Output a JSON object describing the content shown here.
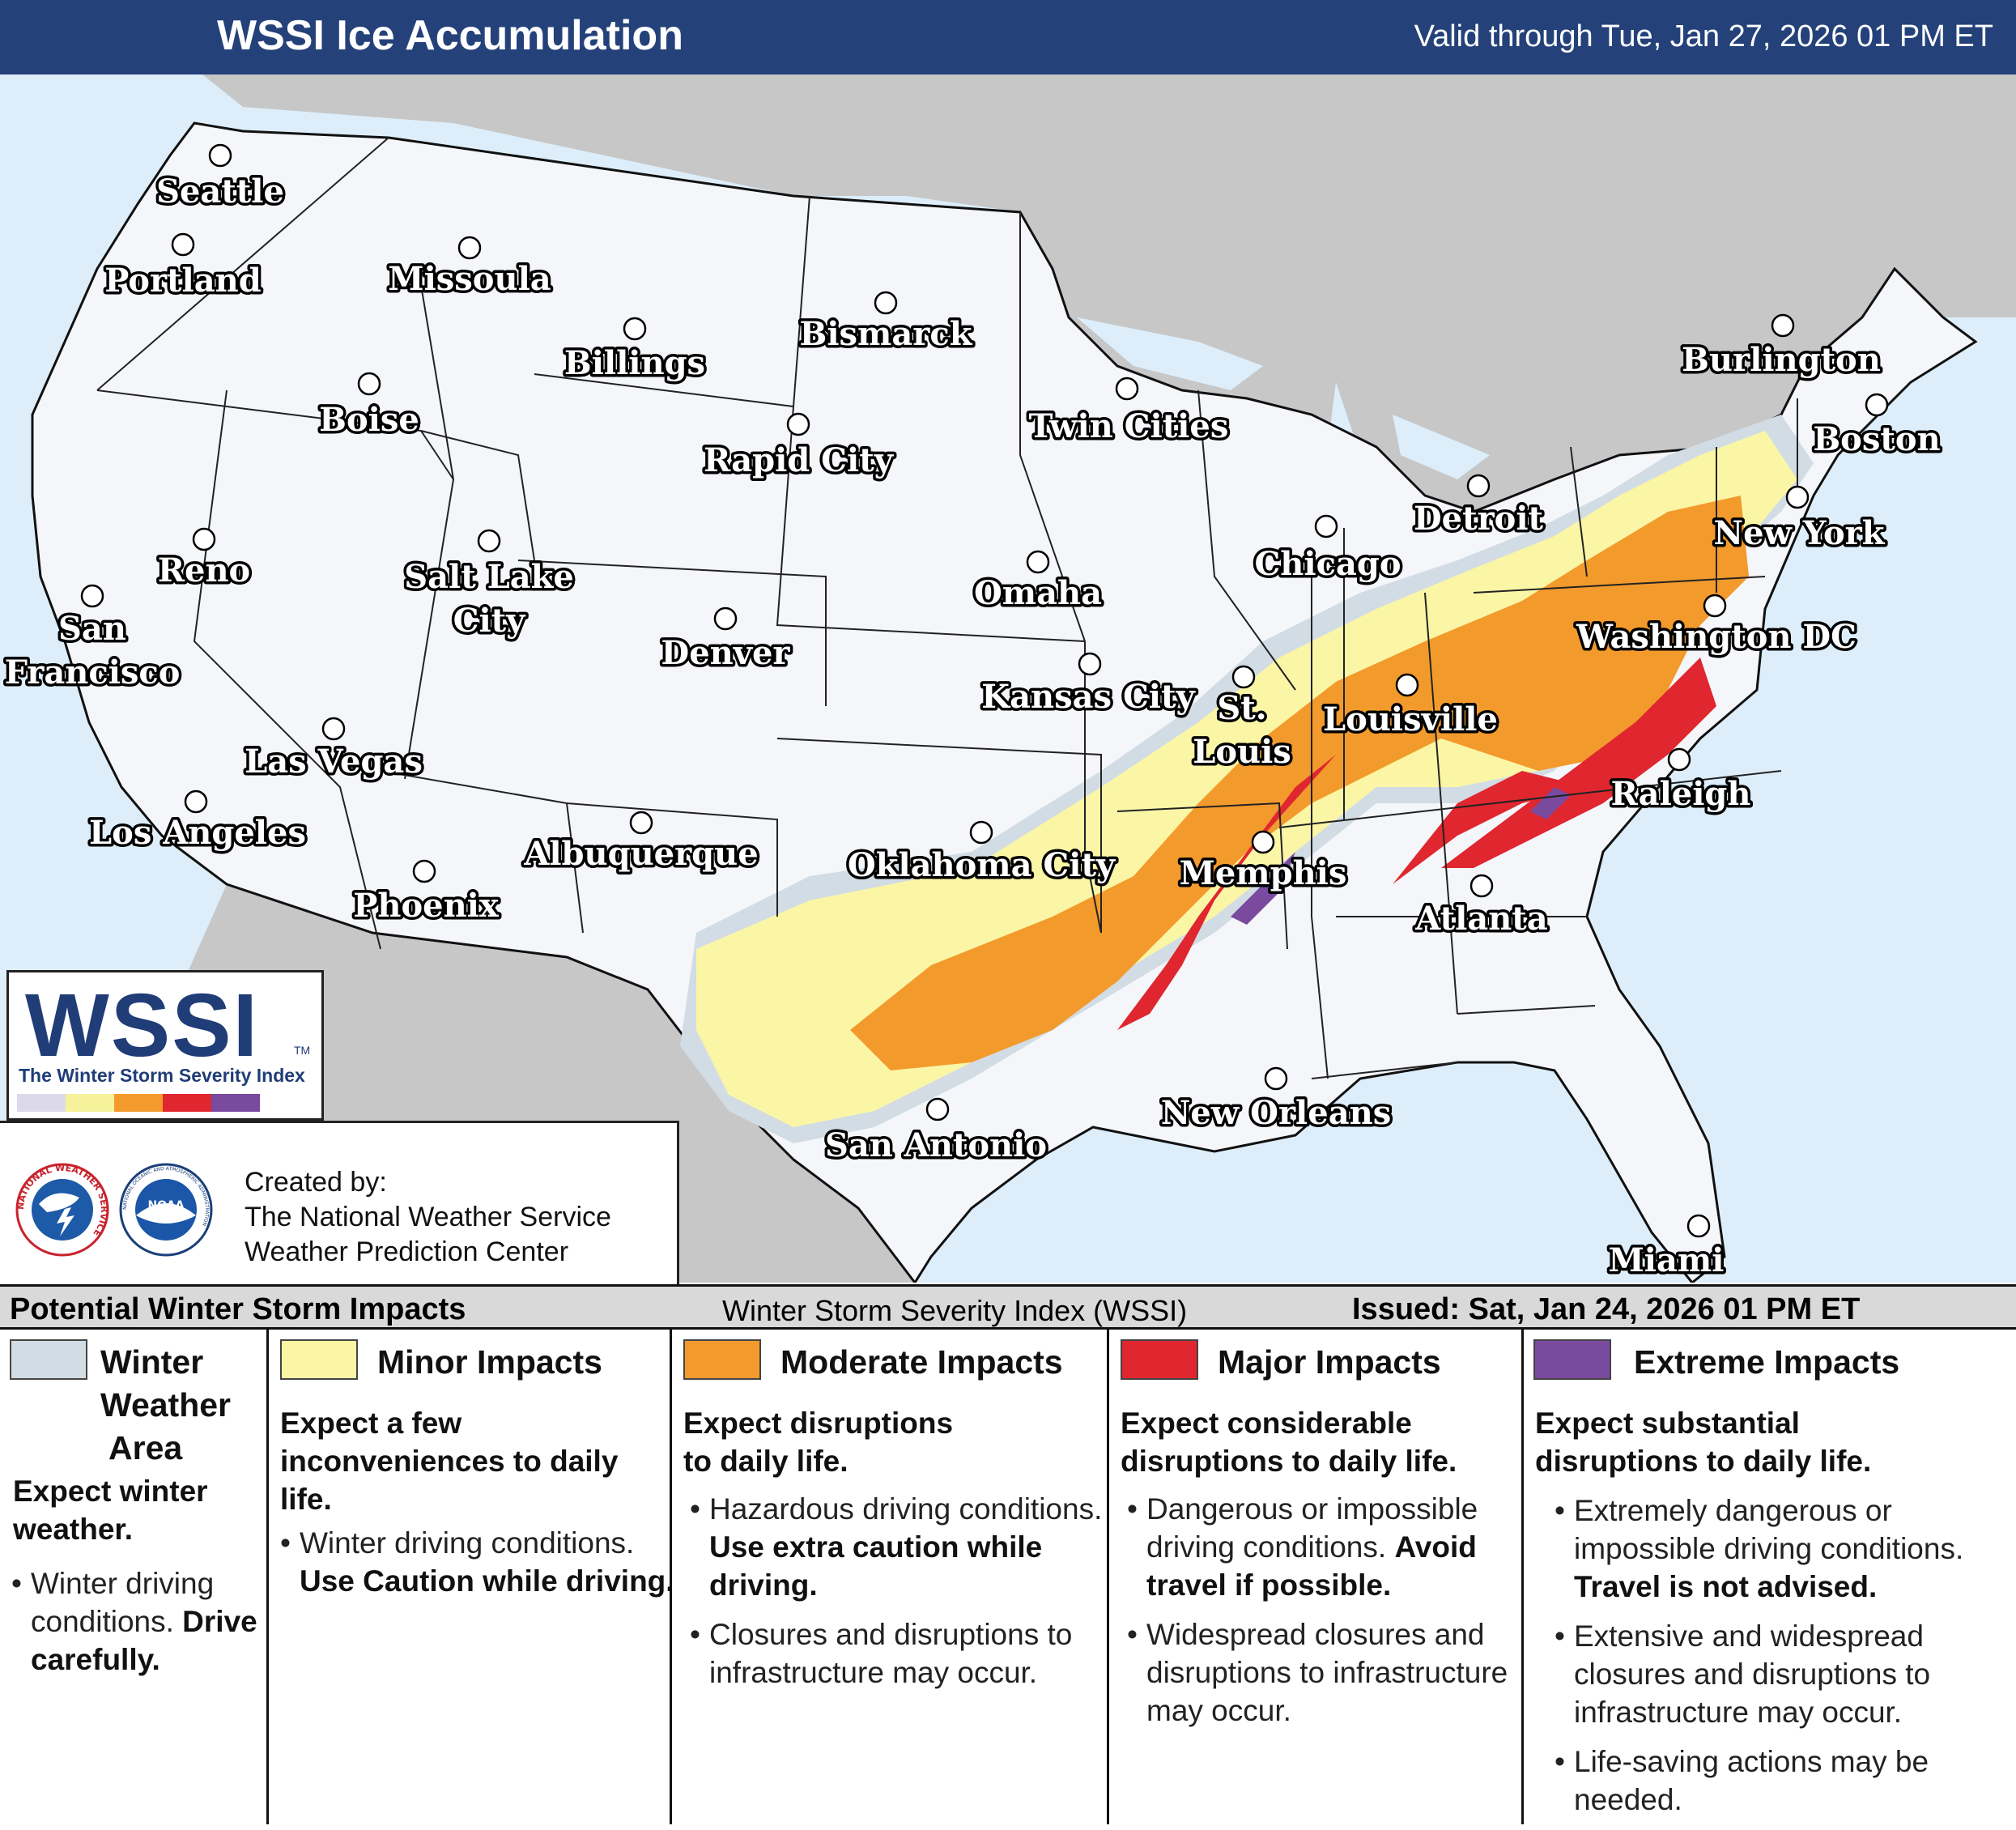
{
  "header": {
    "title": "WSSI Ice Accumulation",
    "valid": "Valid through Tue, Jan 27, 2026 01 PM ET"
  },
  "map": {
    "colors": {
      "ocean": "#ddeefa",
      "land_outside": "#c7c7c7",
      "states": "#f4f6fa",
      "winter": "#d2dce4",
      "minor": "#fbf6a6",
      "moderate": "#f39a2c",
      "major": "#e0262e",
      "extreme": "#7a4a9f"
    },
    "cities": [
      {
        "name": "Seattle"
      },
      {
        "name": "Portland"
      },
      {
        "name": "Missoula"
      },
      {
        "name": "Billings"
      },
      {
        "name": "Bismarck"
      },
      {
        "name": "Boise"
      },
      {
        "name": "Rapid City"
      },
      {
        "name": "Twin Cities"
      },
      {
        "name": "Burlington"
      },
      {
        "name": "Boston"
      },
      {
        "name": "Reno"
      },
      {
        "name": "Salt Lake"
      },
      {
        "name": "City"
      },
      {
        "name": "Omaha"
      },
      {
        "name": "Chicago"
      },
      {
        "name": "Detroit"
      },
      {
        "name": "New York"
      },
      {
        "name": "San"
      },
      {
        "name": "Francisco"
      },
      {
        "name": "Denver"
      },
      {
        "name": "Kansas City"
      },
      {
        "name": "St."
      },
      {
        "name": "Louis"
      },
      {
        "name": "Louisville"
      },
      {
        "name": "Washington DC"
      },
      {
        "name": "Las Vegas"
      },
      {
        "name": "Los Angeles"
      },
      {
        "name": "Albuquerque"
      },
      {
        "name": "Oklahoma City"
      },
      {
        "name": "Memphis"
      },
      {
        "name": "Raleigh"
      },
      {
        "name": "Phoenix"
      },
      {
        "name": "Atlanta"
      },
      {
        "name": "New Orleans"
      },
      {
        "name": "San Antonio"
      },
      {
        "name": "Miami"
      }
    ]
  },
  "logo": {
    "wordmark": "WSSI",
    "tm": "TM",
    "subtitle": "The Winter Storm Severity Index",
    "scale": [
      "#dcd9ea",
      "#f6f29b",
      "#f39a2c",
      "#e0262e",
      "#7a4a9f"
    ]
  },
  "credit": {
    "line1": "Created by:",
    "line2": "The National Weather Service",
    "line3": "Weather Prediction Center",
    "nws_ring_text": "NATIONAL WEATHER SERVICE",
    "noaa_text": "NOAA",
    "noaa_ring_text": "NATIONAL OCEANIC AND ATMOSPHERIC ADMINISTRATION"
  },
  "legend": {
    "bar_left": "Potential Winter Storm Impacts",
    "bar_center": "Winter Storm Severity Index (WSSI)",
    "bar_right": "Issued: Sat, Jan 24, 2026 01 PM ET",
    "categories": [
      {
        "color": "#d2dce4",
        "name_lines": [
          "Winter",
          "Weather",
          "Area"
        ],
        "summary_lines": [
          "Expect winter",
          "weather."
        ],
        "bullets": [
          {
            "text": "Winter driving conditions. ",
            "bold": "Drive carefully."
          }
        ]
      },
      {
        "color": "#fbf6a6",
        "name_lines": [
          "Minor Impacts"
        ],
        "summary_lines": [
          "Expect a few",
          "inconveniences to daily",
          "life."
        ],
        "bullets": [
          {
            "text": "Winter driving conditions. ",
            "bold": "Use Caution while driving."
          }
        ]
      },
      {
        "color": "#f39a2c",
        "name_lines": [
          "Moderate Impacts"
        ],
        "summary_lines": [
          "Expect disruptions",
          "to daily life."
        ],
        "bullets": [
          {
            "text": "Hazardous driving conditions. ",
            "bold": "Use extra caution while driving."
          },
          {
            "text": "Closures and disruptions to infrastructure may occur.",
            "bold": ""
          }
        ]
      },
      {
        "color": "#e0262e",
        "name_lines": [
          "Major Impacts"
        ],
        "summary_lines": [
          "Expect considerable",
          "disruptions to daily life."
        ],
        "bullets": [
          {
            "text": "Dangerous or impossible driving conditions. ",
            "bold": "Avoid travel if possible."
          },
          {
            "text": "Widespread closures and disruptions to infrastructure may occur.",
            "bold": ""
          }
        ]
      },
      {
        "color": "#7a4a9f",
        "name_lines": [
          "Extreme Impacts"
        ],
        "summary_lines": [
          "Expect substantial",
          "disruptions to daily life."
        ],
        "bullets": [
          {
            "text": "Extremely dangerous or impossible driving conditions. ",
            "bold": "Travel is not advised."
          },
          {
            "text": "Extensive and widespread closures and disruptions to infrastructure may occur.",
            "bold": ""
          },
          {
            "text": "Life-saving actions may be needed.",
            "bold": ""
          }
        ]
      }
    ]
  }
}
